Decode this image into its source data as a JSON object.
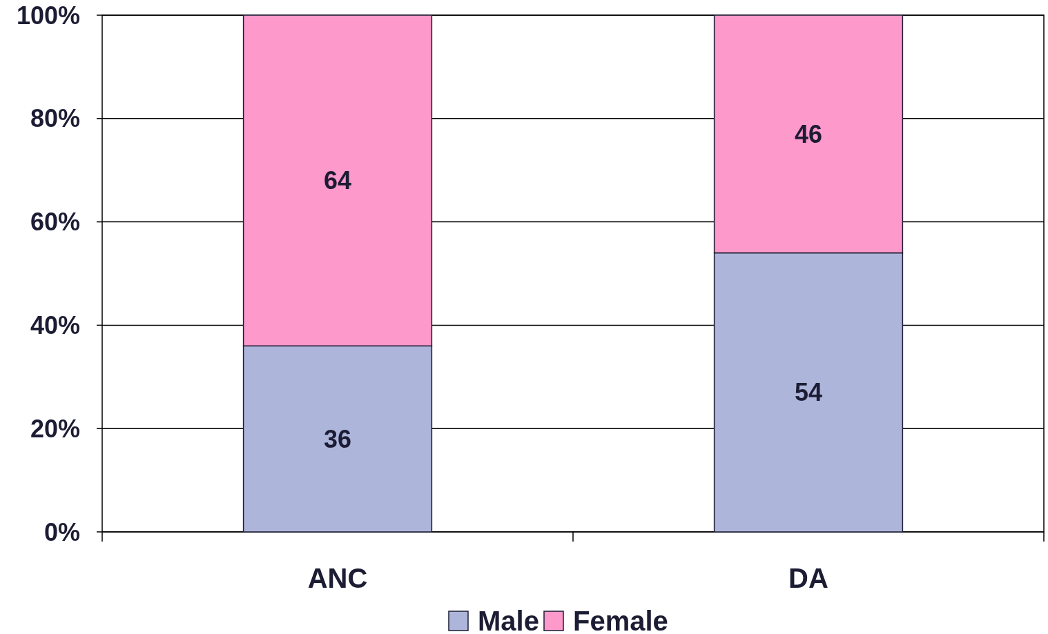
{
  "chart_data": {
    "type": "bar",
    "stacked": true,
    "categories": [
      "ANC",
      "DA"
    ],
    "series": [
      {
        "name": "Male",
        "color": "#aeb5db",
        "values": [
          36,
          54
        ]
      },
      {
        "name": "Female",
        "color": "#fe99cc",
        "values": [
          64,
          46
        ]
      }
    ],
    "ylim": [
      0,
      100
    ],
    "yticks": [
      {
        "value": 0,
        "label": "0%"
      },
      {
        "value": 20,
        "label": "20%"
      },
      {
        "value": 40,
        "label": "40%"
      },
      {
        "value": 60,
        "label": "60%"
      },
      {
        "value": 80,
        "label": "80%"
      },
      {
        "value": 100,
        "label": "100%"
      }
    ],
    "grid": "y",
    "legend": "bottom",
    "data_labels": true
  }
}
